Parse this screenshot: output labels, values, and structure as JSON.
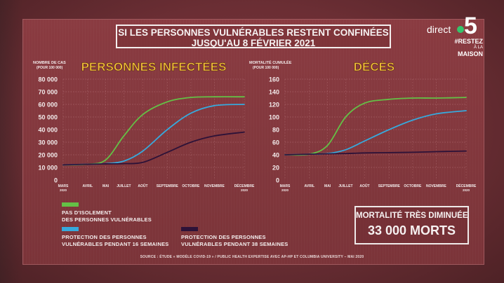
{
  "title": {
    "line1": "SI LES PERSONNES VULNÉRABLES RESTENT CONFINÉES",
    "line2": "JUSQU'AU 8 FÉVRIER 2021"
  },
  "logo": {
    "direct": "direct",
    "five": "5",
    "tag1": "#RESTEZ",
    "tag2": "À LA",
    "tag3": "MAISON"
  },
  "colors": {
    "green": "#64c046",
    "blue": "#37a9dc",
    "purple": "#2d1238",
    "axis_text": "#f2eaea",
    "title_yellow": "#f2c23a",
    "grid": "#b8777c"
  },
  "chart_data": [
    {
      "type": "line",
      "title": "PERSONNES INFECTÉES",
      "ylabel_line1": "NOMBRE DE CAS",
      "ylabel_line2": "(POUR 100 000)",
      "yticks": [
        "0",
        "10 000",
        "20 000",
        "30 000",
        "40 000",
        "50 000",
        "60 000",
        "70 000",
        "80 000"
      ],
      "ylim": [
        0,
        80000
      ],
      "xticks": [
        {
          "label": "MARS",
          "sub": "2020"
        },
        {
          "label": "AVRIL",
          "sub": ""
        },
        {
          "label": "MAI",
          "sub": ""
        },
        {
          "label": "JUILLET",
          "sub": ""
        },
        {
          "label": "AOÛT",
          "sub": ""
        },
        {
          "label": "SEPTEMBRE",
          "sub": ""
        },
        {
          "label": "OCTOBRE",
          "sub": ""
        },
        {
          "label": "NOVEMBRE",
          "sub": ""
        },
        {
          "label": "DÉCEMBRE",
          "sub": "2020"
        }
      ],
      "x": [
        0,
        1,
        2,
        3,
        4,
        5,
        6,
        7,
        8
      ],
      "grid": true,
      "series": [
        {
          "color": "green",
          "values": [
            12000,
            12500,
            16000,
            35000,
            52000,
            62000,
            65500,
            66000,
            66000
          ]
        },
        {
          "color": "blue",
          "values": [
            12000,
            12500,
            13000,
            15000,
            23000,
            40000,
            53000,
            59000,
            60000
          ]
        },
        {
          "color": "purple",
          "values": [
            12000,
            12500,
            12800,
            13000,
            14000,
            22000,
            30000,
            35000,
            38000
          ]
        }
      ]
    },
    {
      "type": "line",
      "title": "DÉCÈS",
      "ylabel_line1": "MORTALITÉ CUMULÉE",
      "ylabel_line2": "(POUR 100 000)",
      "yticks": [
        "0",
        "20",
        "40",
        "60",
        "80",
        "100",
        "120",
        "140",
        "160"
      ],
      "ylim": [
        0,
        160
      ],
      "xticks": [
        {
          "label": "MARS",
          "sub": "2020"
        },
        {
          "label": "AVRIL",
          "sub": ""
        },
        {
          "label": "MAI",
          "sub": ""
        },
        {
          "label": "JUILLET",
          "sub": ""
        },
        {
          "label": "AOÛT",
          "sub": ""
        },
        {
          "label": "SEPTEMBRE",
          "sub": ""
        },
        {
          "label": "OCTOBRE",
          "sub": ""
        },
        {
          "label": "NOVEMBRE",
          "sub": ""
        },
        {
          "label": "DÉCEMBRE",
          "sub": "2020"
        }
      ],
      "x": [
        0,
        1,
        2,
        3,
        4,
        5,
        6,
        7,
        8
      ],
      "grid": true,
      "series": [
        {
          "color": "green",
          "values": [
            40,
            41,
            55,
            100,
            122,
            128,
            130,
            130,
            131
          ]
        },
        {
          "color": "blue",
          "values": [
            40,
            41,
            42,
            48,
            62,
            80,
            95,
            105,
            110
          ]
        },
        {
          "color": "purple",
          "values": [
            40,
            41,
            41.5,
            42,
            43,
            43.5,
            44,
            45,
            46
          ]
        }
      ]
    }
  ],
  "legend": [
    {
      "color": "green",
      "line1": "PAS D'ISOLEMENT",
      "line2": "DES PERSONNES VULNÉRABLES"
    },
    {
      "color": "blue",
      "line1": "PROTECTION DES PERSONNES",
      "line2": "VULNÉRABLES PENDANT 16 SEMAINES"
    },
    {
      "color": "purple",
      "line1": "PROTECTION DES PERSONNES",
      "line2": "VULNÉRABLES PENDANT 38 SEMAINES"
    }
  ],
  "summary": {
    "title": "MORTALITÉ TRÈS DIMINUÉE",
    "value": "33 000 MORTS"
  },
  "source": "SOURCE : ÉTUDE « MODÈLE COVID-19 » / PUBLIC HEALTH EXPERTISE AVEC AP-HP ET COLUMBIA UNIVERSITY – MAI 2020"
}
